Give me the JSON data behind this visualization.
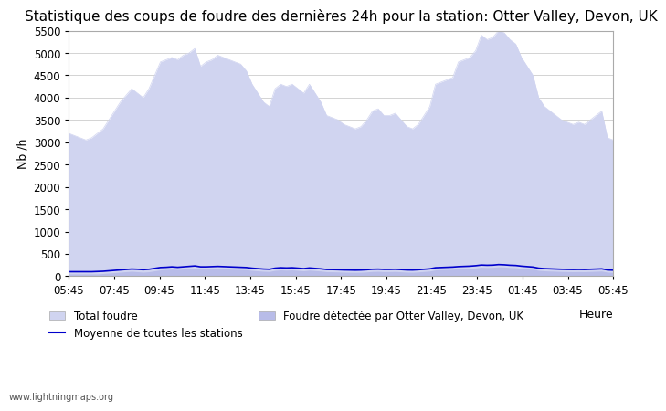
{
  "title": "Statistique des coups de foudre des dernières 24h pour la station: Otter Valley, Devon, UK",
  "ylabel": "Nb /h",
  "xlabel": "Heure",
  "xlim": [
    0,
    96
  ],
  "ylim": [
    0,
    5500
  ],
  "yticks": [
    0,
    500,
    1000,
    1500,
    2000,
    2500,
    3000,
    3500,
    4000,
    4500,
    5000,
    5500
  ],
  "xtick_labels": [
    "05:45",
    "07:45",
    "09:45",
    "11:45",
    "13:45",
    "15:45",
    "17:45",
    "19:45",
    "21:45",
    "23:45",
    "01:45",
    "03:45",
    "05:45"
  ],
  "bg_color": "#ffffff",
  "fill_color_total": "#d0d4f0",
  "fill_color_local": "#b8bce8",
  "line_color_mean": "#0000cc",
  "title_fontsize": 11,
  "tick_fontsize": 8.5,
  "label_fontsize": 9,
  "total_foudre": [
    3200,
    3150,
    3100,
    3050,
    3100,
    3200,
    3300,
    3500,
    3700,
    3900,
    4050,
    4200,
    4100,
    4000,
    4200,
    4500,
    4800,
    4850,
    4900,
    4850,
    4950,
    5000,
    5100,
    4700,
    4800,
    4850,
    4950,
    4900,
    4850,
    4800,
    4750,
    4600,
    4300,
    4100,
    3900,
    3800,
    4200,
    4300,
    4250,
    4300,
    4200,
    4100,
    4300,
    4100,
    3900,
    3600,
    3550,
    3500,
    3400,
    3350,
    3300,
    3350,
    3500,
    3700,
    3750,
    3600,
    3600,
    3650,
    3500,
    3350,
    3300,
    3400,
    3600,
    3800,
    4300,
    4350,
    4400,
    4450,
    4800,
    4850,
    4900,
    5050,
    5400,
    5300,
    5350,
    5500,
    5450,
    5300,
    5200,
    4900,
    4700,
    4500,
    4000,
    3800,
    3700,
    3600,
    3500,
    3450,
    3400,
    3450,
    3400,
    3500,
    3600,
    3700,
    3100,
    3050
  ],
  "local_foudre": [
    50,
    50,
    50,
    50,
    50,
    50,
    60,
    70,
    80,
    90,
    100,
    110,
    100,
    90,
    100,
    120,
    140,
    150,
    160,
    150,
    160,
    170,
    180,
    160,
    160,
    165,
    170,
    165,
    160,
    155,
    150,
    145,
    130,
    120,
    110,
    105,
    130,
    140,
    135,
    140,
    130,
    120,
    135,
    125,
    115,
    100,
    98,
    95,
    90,
    88,
    85,
    88,
    95,
    105,
    108,
    102,
    102,
    105,
    98,
    90,
    88,
    95,
    105,
    115,
    140,
    145,
    150,
    155,
    165,
    170,
    175,
    185,
    200,
    195,
    198,
    210,
    205,
    195,
    190,
    175,
    165,
    155,
    130,
    120,
    115,
    110,
    105,
    102,
    100,
    102,
    100,
    105,
    110,
    115,
    90,
    85
  ],
  "mean_line": [
    100,
    100,
    100,
    100,
    100,
    105,
    110,
    120,
    130,
    140,
    150,
    160,
    155,
    145,
    155,
    175,
    195,
    200,
    210,
    200,
    210,
    220,
    230,
    210,
    210,
    215,
    220,
    215,
    210,
    205,
    200,
    195,
    180,
    170,
    160,
    155,
    180,
    190,
    185,
    190,
    180,
    170,
    185,
    175,
    165,
    150,
    148,
    145,
    140,
    138,
    135,
    138,
    145,
    155,
    158,
    152,
    152,
    155,
    148,
    140,
    138,
    145,
    155,
    165,
    190,
    195,
    200,
    205,
    215,
    220,
    225,
    235,
    250,
    245,
    248,
    260,
    255,
    245,
    240,
    225,
    215,
    205,
    180,
    170,
    165,
    160,
    155,
    152,
    150,
    152,
    150,
    155,
    160,
    165,
    140,
    135
  ],
  "legend_total": "Total foudre",
  "legend_mean": "Moyenne de toutes les stations",
  "legend_local": "Foudre détectée par Otter Valley, Devon, UK",
  "watermark": "www.lightningmaps.org"
}
